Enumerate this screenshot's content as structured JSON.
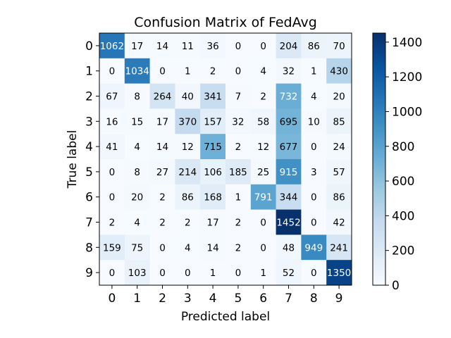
{
  "chart_data": {
    "type": "heatmap",
    "title": "Confusion Matrix of FedAvg",
    "xlabel": "Predicted label",
    "ylabel": "True label",
    "x_categories": [
      "0",
      "1",
      "2",
      "3",
      "4",
      "5",
      "6",
      "7",
      "8",
      "9"
    ],
    "y_categories": [
      "0",
      "1",
      "2",
      "3",
      "4",
      "5",
      "6",
      "7",
      "8",
      "9"
    ],
    "values": [
      [
        1062,
        17,
        14,
        11,
        36,
        0,
        0,
        204,
        86,
        70
      ],
      [
        0,
        1034,
        0,
        1,
        2,
        0,
        4,
        32,
        1,
        430
      ],
      [
        67,
        8,
        264,
        40,
        341,
        7,
        2,
        732,
        4,
        20
      ],
      [
        16,
        15,
        17,
        370,
        157,
        32,
        58,
        695,
        10,
        85
      ],
      [
        41,
        4,
        14,
        12,
        715,
        2,
        12,
        677,
        0,
        24
      ],
      [
        0,
        8,
        27,
        214,
        106,
        185,
        25,
        915,
        3,
        57
      ],
      [
        0,
        20,
        2,
        86,
        168,
        1,
        791,
        344,
        0,
        86
      ],
      [
        2,
        4,
        2,
        2,
        17,
        2,
        0,
        1452,
        0,
        42
      ],
      [
        159,
        75,
        0,
        4,
        14,
        2,
        0,
        48,
        949,
        241
      ],
      [
        0,
        103,
        0,
        0,
        1,
        0,
        1,
        52,
        0,
        1350
      ]
    ],
    "colormap": "Blues",
    "colorbar": {
      "min": 0,
      "max": 1452,
      "ticks": [
        0,
        200,
        400,
        600,
        800,
        1000,
        1200,
        1400
      ]
    }
  }
}
